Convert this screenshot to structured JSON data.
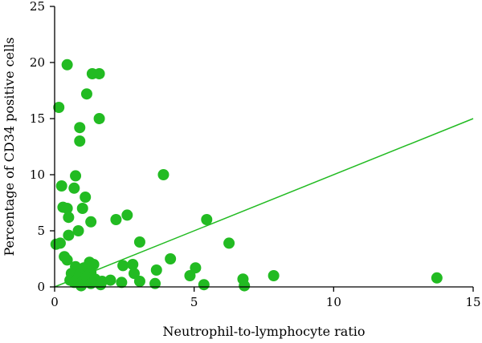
{
  "chart_data": {
    "type": "scatter",
    "xlabel": "Neutrophil-to-lymphocyte ratio",
    "ylabel": "Percentage of CD34 positive cells",
    "xlim": [
      0,
      15
    ],
    "ylim": [
      0,
      25
    ],
    "x_ticks": [
      0,
      5,
      10,
      15
    ],
    "y_ticks": [
      0,
      5,
      10,
      15,
      20,
      25
    ],
    "grid": false,
    "legend": "none",
    "marker_color": "#22bb22",
    "line_color": "#22bb22",
    "trend_line": {
      "x": [
        0,
        15
      ],
      "y": [
        0,
        15
      ]
    },
    "points": [
      {
        "x": 0.45,
        "y": 19.8
      },
      {
        "x": 1.35,
        "y": 19.0
      },
      {
        "x": 1.6,
        "y": 19.0
      },
      {
        "x": 1.15,
        "y": 17.2
      },
      {
        "x": 0.15,
        "y": 16.0
      },
      {
        "x": 1.6,
        "y": 15.0
      },
      {
        "x": 0.9,
        "y": 14.2
      },
      {
        "x": 0.9,
        "y": 13.0
      },
      {
        "x": 0.75,
        "y": 9.9
      },
      {
        "x": 3.9,
        "y": 10.0
      },
      {
        "x": 0.25,
        "y": 9.0
      },
      {
        "x": 0.7,
        "y": 8.8
      },
      {
        "x": 1.1,
        "y": 8.0
      },
      {
        "x": 0.3,
        "y": 7.1
      },
      {
        "x": 0.45,
        "y": 7.0
      },
      {
        "x": 1.0,
        "y": 7.0
      },
      {
        "x": 0.5,
        "y": 6.2
      },
      {
        "x": 2.2,
        "y": 6.0
      },
      {
        "x": 2.6,
        "y": 6.4
      },
      {
        "x": 1.3,
        "y": 5.8
      },
      {
        "x": 5.45,
        "y": 6.0
      },
      {
        "x": 0.85,
        "y": 5.0
      },
      {
        "x": 0.5,
        "y": 4.6
      },
      {
        "x": 0.05,
        "y": 3.8
      },
      {
        "x": 0.2,
        "y": 3.9
      },
      {
        "x": 3.05,
        "y": 4.0
      },
      {
        "x": 6.25,
        "y": 3.9
      },
      {
        "x": 0.35,
        "y": 2.7
      },
      {
        "x": 0.45,
        "y": 2.4
      },
      {
        "x": 4.15,
        "y": 2.5
      },
      {
        "x": 1.25,
        "y": 2.2
      },
      {
        "x": 1.4,
        "y": 2.0
      },
      {
        "x": 2.45,
        "y": 1.9
      },
      {
        "x": 2.8,
        "y": 2.0
      },
      {
        "x": 0.75,
        "y": 1.8
      },
      {
        "x": 1.05,
        "y": 1.7
      },
      {
        "x": 5.05,
        "y": 1.7
      },
      {
        "x": 3.65,
        "y": 1.5
      },
      {
        "x": 0.6,
        "y": 1.2
      },
      {
        "x": 0.9,
        "y": 1.1
      },
      {
        "x": 1.3,
        "y": 1.3
      },
      {
        "x": 2.85,
        "y": 1.2
      },
      {
        "x": 4.85,
        "y": 1.0
      },
      {
        "x": 7.85,
        "y": 1.0
      },
      {
        "x": 0.55,
        "y": 0.6
      },
      {
        "x": 0.7,
        "y": 0.4
      },
      {
        "x": 0.85,
        "y": 0.8
      },
      {
        "x": 1.0,
        "y": 0.5
      },
      {
        "x": 1.15,
        "y": 0.9
      },
      {
        "x": 1.3,
        "y": 0.3
      },
      {
        "x": 1.45,
        "y": 0.7
      },
      {
        "x": 1.7,
        "y": 0.5
      },
      {
        "x": 2.0,
        "y": 0.6
      },
      {
        "x": 2.4,
        "y": 0.4
      },
      {
        "x": 0.95,
        "y": 0.1
      },
      {
        "x": 1.65,
        "y": 0.2
      },
      {
        "x": 3.05,
        "y": 0.5
      },
      {
        "x": 3.6,
        "y": 0.3
      },
      {
        "x": 5.35,
        "y": 0.2
      },
      {
        "x": 6.75,
        "y": 0.7
      },
      {
        "x": 6.8,
        "y": 0.1
      },
      {
        "x": 13.7,
        "y": 0.8
      }
    ]
  }
}
